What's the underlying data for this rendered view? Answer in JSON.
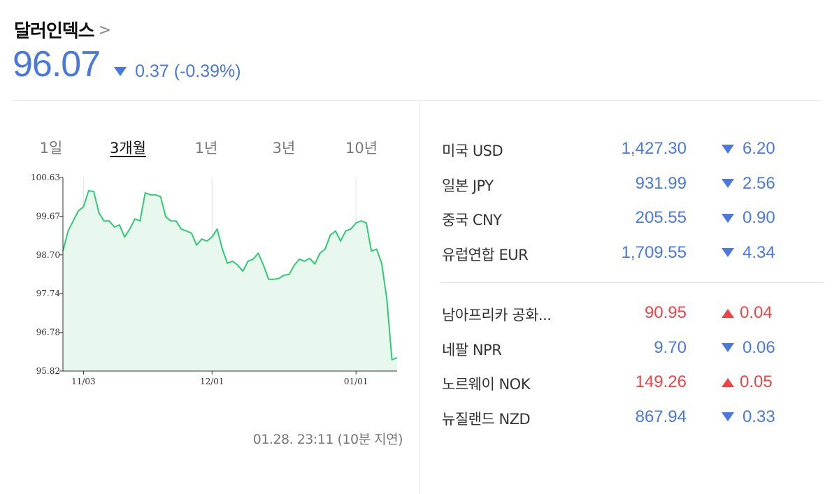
{
  "header": {
    "title": "달러인덱스",
    "chevron": ">",
    "price": "96.07",
    "change": "0.37 (-0.39%)",
    "direction": "down"
  },
  "tabs": [
    {
      "label": "1일",
      "active": false
    },
    {
      "label": "3개월",
      "active": true
    },
    {
      "label": "1년",
      "active": false
    },
    {
      "label": "3년",
      "active": false
    },
    {
      "label": "10년",
      "active": false
    }
  ],
  "timestamp": "01.28. 23:11 (10분 지연)",
  "colors": {
    "accent_blue": "#4a78de",
    "up_red": "#f04444",
    "line_green": "#2ecc71",
    "area_fill": "#e9f8ee"
  },
  "chart_data": {
    "type": "area",
    "ylim": [
      95.82,
      100.63
    ],
    "y_ticks": [
      "100.63",
      "99.67",
      "98.70",
      "97.74",
      "96.78",
      "95.82"
    ],
    "x_ticks": [
      "11/03",
      "12/01",
      "01/01"
    ],
    "x_tick_index": [
      4,
      29,
      57
    ],
    "grid": "vertical",
    "values": [
      98.8,
      99.3,
      99.55,
      99.8,
      99.9,
      100.3,
      100.28,
      99.75,
      99.55,
      99.55,
      99.4,
      99.45,
      99.15,
      99.35,
      99.6,
      99.55,
      100.25,
      100.2,
      100.2,
      100.15,
      99.65,
      99.55,
      99.55,
      99.35,
      99.3,
      99.25,
      98.95,
      99.1,
      99.05,
      99.15,
      99.35,
      98.85,
      98.5,
      98.55,
      98.45,
      98.3,
      98.55,
      98.6,
      98.75,
      98.45,
      98.1,
      98.1,
      98.12,
      98.2,
      98.22,
      98.45,
      98.6,
      98.55,
      98.62,
      98.48,
      98.75,
      98.85,
      99.2,
      99.3,
      99.05,
      99.3,
      99.35,
      99.5,
      99.55,
      99.5,
      98.8,
      98.85,
      98.5,
      97.6,
      96.1,
      96.15
    ]
  },
  "fx": {
    "group1": [
      {
        "name": "미국 USD",
        "value": "1,427.30",
        "change": "6.20",
        "direction": "down"
      },
      {
        "name": "일본 JPY",
        "value": "931.99",
        "change": "2.56",
        "direction": "down"
      },
      {
        "name": "중국 CNY",
        "value": "205.55",
        "change": "0.90",
        "direction": "down"
      },
      {
        "name": "유럽연합 EUR",
        "value": "1,709.55",
        "change": "4.34",
        "direction": "down"
      }
    ],
    "group2": [
      {
        "name": "남아프리카 공화...",
        "value": "90.95",
        "change": "0.04",
        "direction": "up"
      },
      {
        "name": "네팔 NPR",
        "value": "9.70",
        "change": "0.06",
        "direction": "down"
      },
      {
        "name": "노르웨이 NOK",
        "value": "149.26",
        "change": "0.05",
        "direction": "up"
      },
      {
        "name": "뉴질랜드 NZD",
        "value": "867.94",
        "change": "0.33",
        "direction": "down"
      }
    ]
  }
}
